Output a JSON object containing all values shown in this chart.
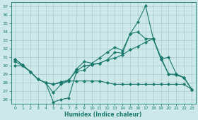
{
  "xlabel": "Humidex (Indice chaleur)",
  "bg_color": "#cce8e8",
  "grid_color": "#aacccc",
  "line_color": "#1a7a6e",
  "xlim": [
    -0.5,
    23.5
  ],
  "ylim": [
    25.5,
    37.5
  ],
  "xticks": [
    0,
    1,
    2,
    3,
    4,
    5,
    6,
    7,
    8,
    9,
    10,
    11,
    12,
    13,
    14,
    15,
    16,
    17,
    18,
    19,
    20,
    21,
    22,
    23
  ],
  "yticks": [
    26,
    27,
    28,
    29,
    30,
    31,
    32,
    33,
    34,
    35,
    36,
    37
  ],
  "series": [
    {
      "x": [
        0,
        1,
        2,
        3,
        4,
        5,
        6,
        7,
        8,
        9,
        10,
        11,
        12,
        13,
        14,
        15,
        16,
        17,
        18,
        19,
        20,
        21,
        22,
        23
      ],
      "y": [
        30.8,
        30.1,
        29.3,
        28.4,
        28.0,
        25.7,
        26.0,
        26.2,
        29.3,
        29.5,
        30.2,
        30.3,
        30.7,
        31.6,
        31.5,
        33.8,
        35.2,
        37.1,
        33.2,
        31.0,
        29.0,
        28.9,
        28.6,
        27.2
      ]
    },
    {
      "x": [
        0,
        1,
        2,
        3,
        4,
        5,
        6,
        7,
        8,
        9,
        10,
        11,
        12,
        13,
        14,
        15,
        16,
        17,
        18,
        19,
        20,
        21,
        22,
        23
      ],
      "y": [
        30.8,
        30.1,
        29.3,
        28.4,
        28.0,
        26.8,
        27.8,
        28.2,
        29.6,
        30.5,
        30.3,
        30.9,
        31.6,
        32.2,
        31.8,
        33.8,
        34.0,
        33.2,
        33.2,
        30.8,
        29.0,
        29.0,
        28.6,
        27.2
      ]
    },
    {
      "x": [
        0,
        1,
        2,
        3,
        4,
        5,
        6,
        7,
        8,
        9,
        10,
        11,
        12,
        13,
        14,
        15,
        16,
        17,
        18,
        19,
        20,
        21,
        22,
        23
      ],
      "y": [
        30.5,
        30.0,
        29.3,
        28.4,
        28.0,
        27.8,
        28.1,
        28.3,
        29.4,
        30.0,
        30.1,
        30.3,
        30.7,
        30.9,
        31.3,
        31.9,
        32.3,
        32.8,
        33.2,
        30.8,
        31.0,
        29.0,
        28.6,
        27.2
      ]
    },
    {
      "x": [
        0,
        1,
        2,
        3,
        4,
        5,
        6,
        7,
        8,
        9,
        10,
        11,
        12,
        13,
        14,
        15,
        16,
        17,
        18,
        19,
        20,
        21,
        22,
        23
      ],
      "y": [
        30.0,
        30.0,
        29.3,
        28.4,
        28.0,
        27.8,
        28.0,
        28.2,
        28.2,
        28.2,
        28.2,
        28.2,
        28.0,
        27.8,
        27.8,
        27.8,
        27.8,
        27.8,
        27.8,
        27.8,
        27.8,
        27.8,
        27.8,
        27.2
      ]
    }
  ]
}
